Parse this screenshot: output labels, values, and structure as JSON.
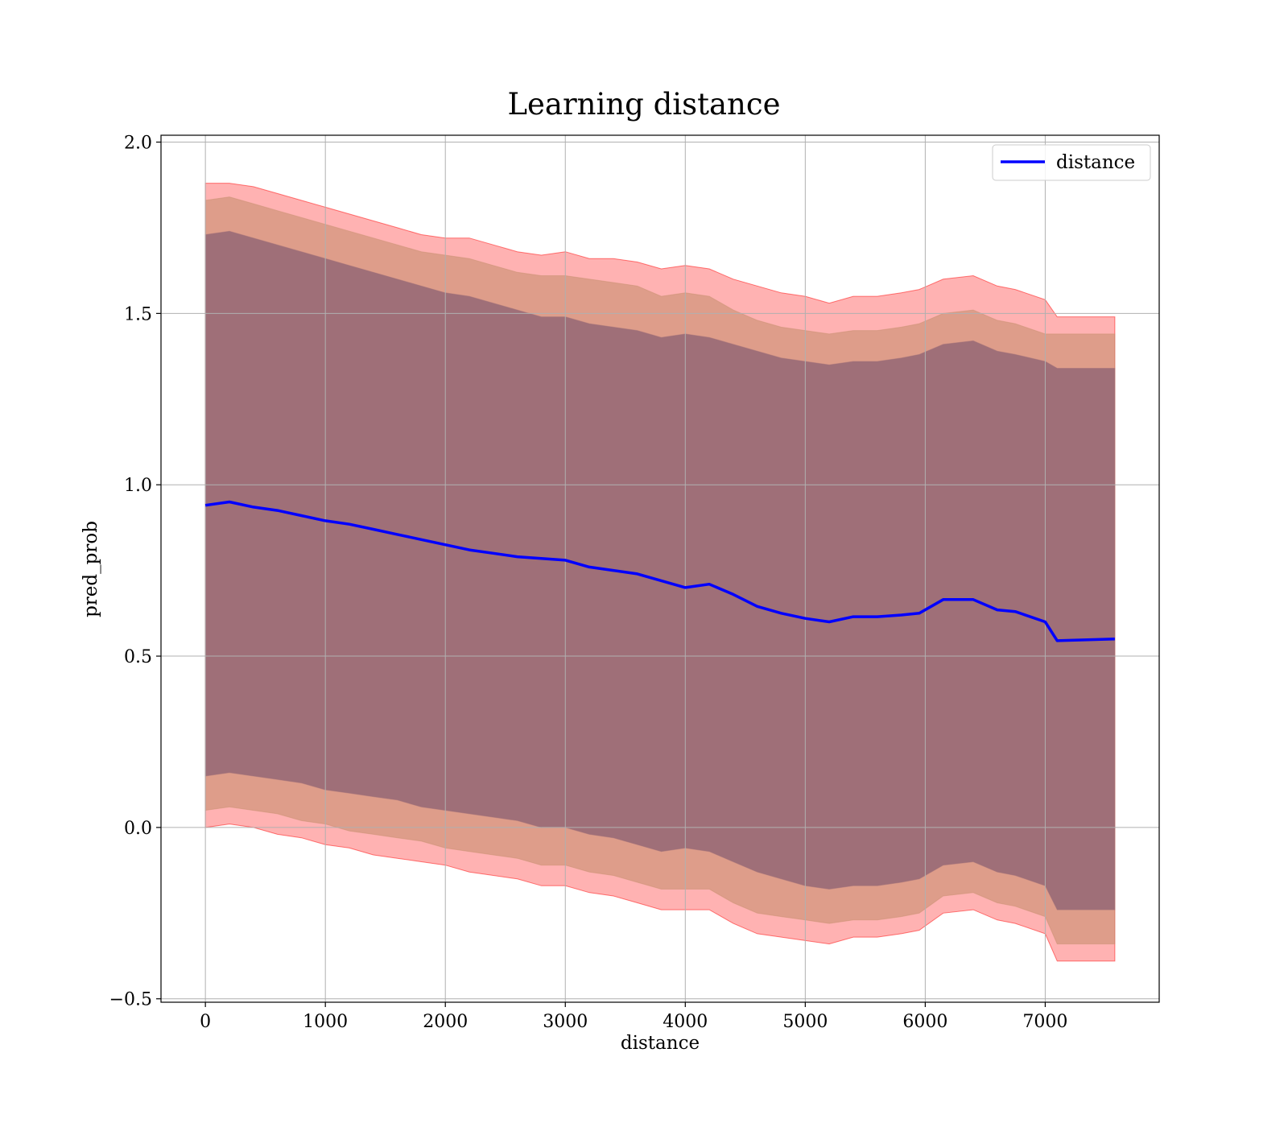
{
  "chart_data": {
    "type": "line",
    "title": "Learning distance",
    "xlabel": "distance",
    "ylabel": "pred_prob",
    "xlim": [
      -370,
      7950
    ],
    "ylim": [
      -0.51,
      2.02
    ],
    "xticks": [
      0,
      1000,
      2000,
      3000,
      4000,
      5000,
      6000,
      7000
    ],
    "yticks": [
      -0.5,
      0.0,
      0.5,
      1.0,
      1.5,
      2.0
    ],
    "xtick_labels": [
      "0",
      "1000",
      "2000",
      "3000",
      "4000",
      "5000",
      "6000",
      "7000"
    ],
    "ytick_labels": [
      "−0.5",
      "0.0",
      "0.5",
      "1.0",
      "1.5",
      "2.0"
    ],
    "grid": true,
    "legend_position": "top-right",
    "x": [
      0,
      200,
      400,
      600,
      800,
      1000,
      1200,
      1400,
      1600,
      1800,
      2000,
      2200,
      2400,
      2600,
      2800,
      3000,
      3200,
      3400,
      3600,
      3800,
      4000,
      4200,
      4400,
      4600,
      4800,
      5000,
      5200,
      5400,
      5600,
      5800,
      5950,
      6150,
      6400,
      6600,
      6750,
      7000,
      7100,
      7580
    ],
    "series": [
      {
        "name": "distance",
        "color": "#0000ff",
        "values": [
          0.94,
          0.95,
          0.935,
          0.925,
          0.91,
          0.895,
          0.885,
          0.87,
          0.855,
          0.84,
          0.825,
          0.81,
          0.8,
          0.79,
          0.785,
          0.78,
          0.76,
          0.75,
          0.74,
          0.72,
          0.7,
          0.71,
          0.68,
          0.645,
          0.625,
          0.61,
          0.6,
          0.615,
          0.615,
          0.62,
          0.625,
          0.665,
          0.665,
          0.635,
          0.63,
          0.6,
          0.545,
          0.55
        ]
      }
    ],
    "bands": [
      {
        "level": "outer",
        "color": "#ff0000",
        "opacity": 0.3,
        "upper": [
          1.88,
          1.88,
          1.87,
          1.85,
          1.83,
          1.81,
          1.79,
          1.77,
          1.75,
          1.73,
          1.72,
          1.72,
          1.7,
          1.68,
          1.67,
          1.68,
          1.66,
          1.66,
          1.65,
          1.63,
          1.64,
          1.63,
          1.6,
          1.58,
          1.56,
          1.55,
          1.53,
          1.55,
          1.55,
          1.56,
          1.57,
          1.6,
          1.61,
          1.58,
          1.57,
          1.54,
          1.49,
          1.49
        ],
        "lower": [
          0.0,
          0.01,
          0.0,
          -0.02,
          -0.03,
          -0.05,
          -0.06,
          -0.08,
          -0.09,
          -0.1,
          -0.11,
          -0.13,
          -0.14,
          -0.15,
          -0.17,
          -0.17,
          -0.19,
          -0.2,
          -0.22,
          -0.24,
          -0.24,
          -0.24,
          -0.28,
          -0.31,
          -0.32,
          -0.33,
          -0.34,
          -0.32,
          -0.32,
          -0.31,
          -0.3,
          -0.25,
          -0.24,
          -0.27,
          -0.28,
          -0.31,
          -0.39,
          -0.39
        ]
      },
      {
        "level": "middle",
        "color": "#c89070",
        "opacity": 0.6,
        "upper": [
          1.83,
          1.84,
          1.82,
          1.8,
          1.78,
          1.76,
          1.74,
          1.72,
          1.7,
          1.68,
          1.67,
          1.66,
          1.64,
          1.62,
          1.61,
          1.61,
          1.6,
          1.59,
          1.58,
          1.55,
          1.56,
          1.55,
          1.51,
          1.48,
          1.46,
          1.45,
          1.44,
          1.45,
          1.45,
          1.46,
          1.47,
          1.5,
          1.51,
          1.48,
          1.47,
          1.44,
          1.44,
          1.44
        ],
        "lower": [
          0.05,
          0.06,
          0.05,
          0.04,
          0.02,
          0.01,
          -0.01,
          -0.02,
          -0.03,
          -0.04,
          -0.06,
          -0.07,
          -0.08,
          -0.09,
          -0.11,
          -0.11,
          -0.13,
          -0.14,
          -0.16,
          -0.18,
          -0.18,
          -0.18,
          -0.22,
          -0.25,
          -0.26,
          -0.27,
          -0.28,
          -0.27,
          -0.27,
          -0.26,
          -0.25,
          -0.2,
          -0.19,
          -0.22,
          -0.23,
          -0.26,
          -0.34,
          -0.34
        ]
      },
      {
        "level": "inner",
        "color": "#9f6f78",
        "opacity": 1.0,
        "upper": [
          1.73,
          1.74,
          1.72,
          1.7,
          1.68,
          1.66,
          1.64,
          1.62,
          1.6,
          1.58,
          1.56,
          1.55,
          1.53,
          1.51,
          1.49,
          1.49,
          1.47,
          1.46,
          1.45,
          1.43,
          1.44,
          1.43,
          1.41,
          1.39,
          1.37,
          1.36,
          1.35,
          1.36,
          1.36,
          1.37,
          1.38,
          1.41,
          1.42,
          1.39,
          1.38,
          1.36,
          1.34,
          1.34
        ],
        "lower": [
          0.15,
          0.16,
          0.15,
          0.14,
          0.13,
          0.11,
          0.1,
          0.09,
          0.08,
          0.06,
          0.05,
          0.04,
          0.03,
          0.02,
          0.0,
          0.0,
          -0.02,
          -0.03,
          -0.05,
          -0.07,
          -0.06,
          -0.07,
          -0.1,
          -0.13,
          -0.15,
          -0.17,
          -0.18,
          -0.17,
          -0.17,
          -0.16,
          -0.15,
          -0.11,
          -0.1,
          -0.13,
          -0.14,
          -0.17,
          -0.24,
          -0.24
        ]
      }
    ]
  }
}
